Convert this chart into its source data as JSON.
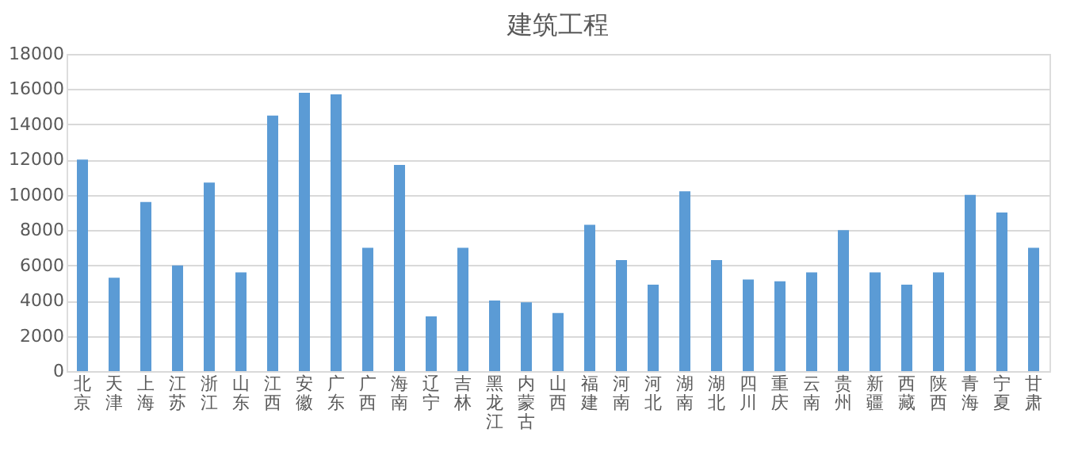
{
  "chart_data": {
    "type": "bar",
    "title": "建筑工程",
    "categories": [
      "北京",
      "天津",
      "上海",
      "江苏",
      "浙江",
      "山东",
      "江西",
      "安徽",
      "广东",
      "广西",
      "海南",
      "辽宁",
      "吉林",
      "黑龙江",
      "内蒙古",
      "山西",
      "福建",
      "河南",
      "河北",
      "湖南",
      "湖北",
      "四川",
      "重庆",
      "云南",
      "贵州",
      "新疆",
      "西藏",
      "陕西",
      "青海",
      "宁夏",
      "甘肃"
    ],
    "values": [
      12000,
      5300,
      9600,
      6000,
      10700,
      5600,
      14500,
      15800,
      15700,
      7000,
      11700,
      3100,
      7000,
      4000,
      3900,
      3300,
      8300,
      6300,
      4900,
      10200,
      6300,
      5200,
      5100,
      5600,
      8000,
      5600,
      4900,
      5600,
      10000,
      9000,
      7000
    ],
    "color": "#5b9bd5",
    "ylim": [
      0,
      18000
    ],
    "yticks": [
      0,
      2000,
      4000,
      6000,
      8000,
      10000,
      12000,
      14000,
      16000,
      18000
    ],
    "grid": "y"
  }
}
